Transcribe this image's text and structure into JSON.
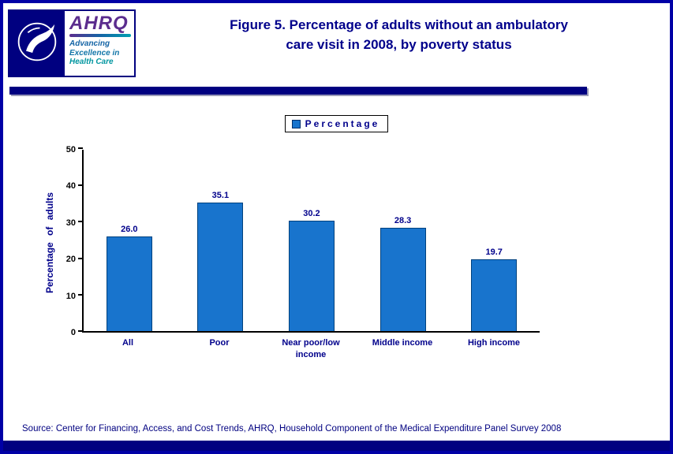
{
  "header": {
    "title_line1": "Figure 5. Percentage of adults without an ambulatory",
    "title_line2": "care visit in 2008, by poverty status",
    "ahrq": {
      "name": "AHRQ",
      "tagline_line1": "Advancing",
      "tagline_line2": "Excellence in",
      "tagline_line3": "Health Care"
    }
  },
  "legend": {
    "label": "Percentage"
  },
  "chart_data": {
    "type": "bar",
    "title": "Figure 5. Percentage of adults without an ambulatory care visit in 2008, by poverty status",
    "categories": [
      "All",
      "Poor",
      "Near poor/low income",
      "Middle income",
      "High income"
    ],
    "values": [
      26.0,
      35.1,
      30.2,
      28.3,
      19.7
    ],
    "value_labels": [
      "26.0",
      "35.1",
      "30.2",
      "28.3",
      "19.7"
    ],
    "series_name": "Percentage",
    "xlabel": "",
    "ylabel": "Percentage of adults",
    "ylim": [
      0,
      50
    ],
    "yticks": [
      0,
      10,
      20,
      30,
      40,
      50
    ],
    "grid": false,
    "legend_position": "top",
    "bar_color": "#1874cd"
  },
  "footer": {
    "source": "Source: Center for Financing, Access, and Cost Trends, AHRQ, Household Component of the Medical Expenditure Panel Survey 2008"
  },
  "colors": {
    "page_border": "#0000a6",
    "navy_bar": "#000080",
    "title_text": "#00008b",
    "bar_fill": "#1874cd",
    "source_text": "#000080"
  }
}
